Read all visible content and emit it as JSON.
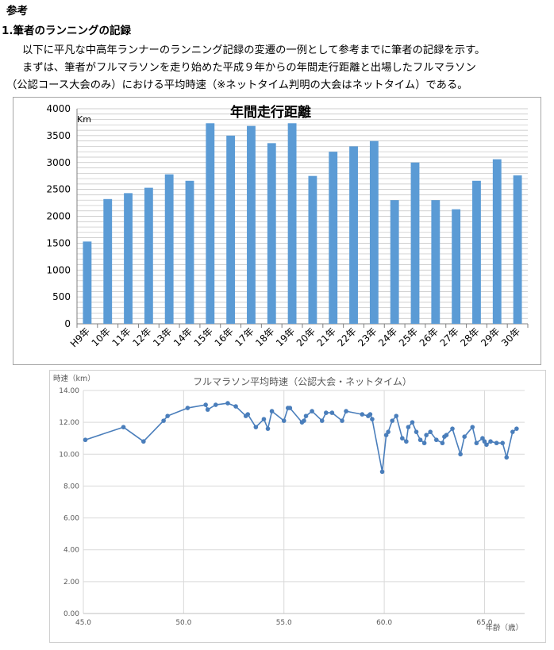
{
  "document": {
    "heading": "参考",
    "section_title": "1.筆者のランニングの記録",
    "para1": "以下に平凡な中高年ランナーのランニング記録の変遷の一例として参考までに筆者の記録を示す。",
    "para2": "まずは、筆者がフルマラソンを走り始めた平成９年からの年間走行距離と出場したフルマラソン",
    "para3": "（公認コース大会のみ）における平均時速（※ネットタイム判明の大会はネットタイム）である。"
  },
  "chart_data": [
    {
      "type": "bar",
      "title": "年間走行距離",
      "ylabel": "Km",
      "xlabel": "",
      "ylim": [
        0,
        4000
      ],
      "yticks": [
        0,
        500,
        1000,
        1500,
        2000,
        2500,
        3000,
        3500,
        4000
      ],
      "grid": true,
      "bar_color": "#5b9bd5",
      "categories": [
        "H9年",
        "10年",
        "11年",
        "12年",
        "13年",
        "14年",
        "15年",
        "16年",
        "17年",
        "18年",
        "19年",
        "20年",
        "21年",
        "22年",
        "23年",
        "24年",
        "25年",
        "26年",
        "27年",
        "28年",
        "29年",
        "30年"
      ],
      "values": [
        1530,
        2320,
        2430,
        2530,
        2780,
        2660,
        3730,
        3500,
        3680,
        3360,
        3730,
        2750,
        3200,
        3300,
        3400,
        2300,
        3000,
        2300,
        2130,
        2660,
        3060,
        2760
      ]
    },
    {
      "type": "line",
      "title": "フルマラソン平均時速（公認大会・ネットタイム）",
      "ylabel": "時速（km）",
      "xlabel": "年齢（歳）",
      "xlim": [
        45,
        67
      ],
      "ylim": [
        0,
        14
      ],
      "xticks": [
        "45.0",
        "50.0",
        "55.0",
        "60.0",
        "65.0"
      ],
      "xtick_values": [
        45,
        50,
        55,
        60,
        65
      ],
      "yticks": [
        "0.00",
        "2.00",
        "4.00",
        "6.00",
        "8.00",
        "10.00",
        "12.00",
        "14.00"
      ],
      "ytick_values": [
        0,
        2,
        4,
        6,
        8,
        10,
        12,
        14
      ],
      "grid": true,
      "line_color": "#4a7ebb",
      "x": [
        45.1,
        47.0,
        48.0,
        49.0,
        49.2,
        50.2,
        51.1,
        51.2,
        51.6,
        52.2,
        52.6,
        53.1,
        53.2,
        53.6,
        54.0,
        54.2,
        54.4,
        55.0,
        55.2,
        55.3,
        55.9,
        56.0,
        56.1,
        56.4,
        56.9,
        57.1,
        57.4,
        57.9,
        58.1,
        58.9,
        59.2,
        59.3,
        59.4,
        59.9,
        60.1,
        60.2,
        60.4,
        60.6,
        60.9,
        61.1,
        61.2,
        61.4,
        61.6,
        61.8,
        62.0,
        62.1,
        62.3,
        62.6,
        62.9,
        63.0,
        63.1,
        63.4,
        63.8,
        64.0,
        64.4,
        64.6,
        64.9,
        65.0,
        65.1,
        65.3,
        65.6,
        65.9,
        66.1,
        66.4,
        66.6
      ],
      "y": [
        10.9,
        11.7,
        10.8,
        12.1,
        12.4,
        12.9,
        13.1,
        12.8,
        13.1,
        13.2,
        13.0,
        12.4,
        12.5,
        11.7,
        12.2,
        11.6,
        12.7,
        12.1,
        12.9,
        12.9,
        12.0,
        12.1,
        12.4,
        12.7,
        12.1,
        12.6,
        12.6,
        12.1,
        12.7,
        12.5,
        12.4,
        12.5,
        12.2,
        8.9,
        11.2,
        11.4,
        12.1,
        12.4,
        11.0,
        10.8,
        11.7,
        12.0,
        11.4,
        10.9,
        10.7,
        11.2,
        11.4,
        10.9,
        10.7,
        11.1,
        11.2,
        11.6,
        10.0,
        11.1,
        11.7,
        10.7,
        11.0,
        10.8,
        10.6,
        10.8,
        10.7,
        10.7,
        9.8,
        11.4,
        11.6
      ]
    }
  ]
}
